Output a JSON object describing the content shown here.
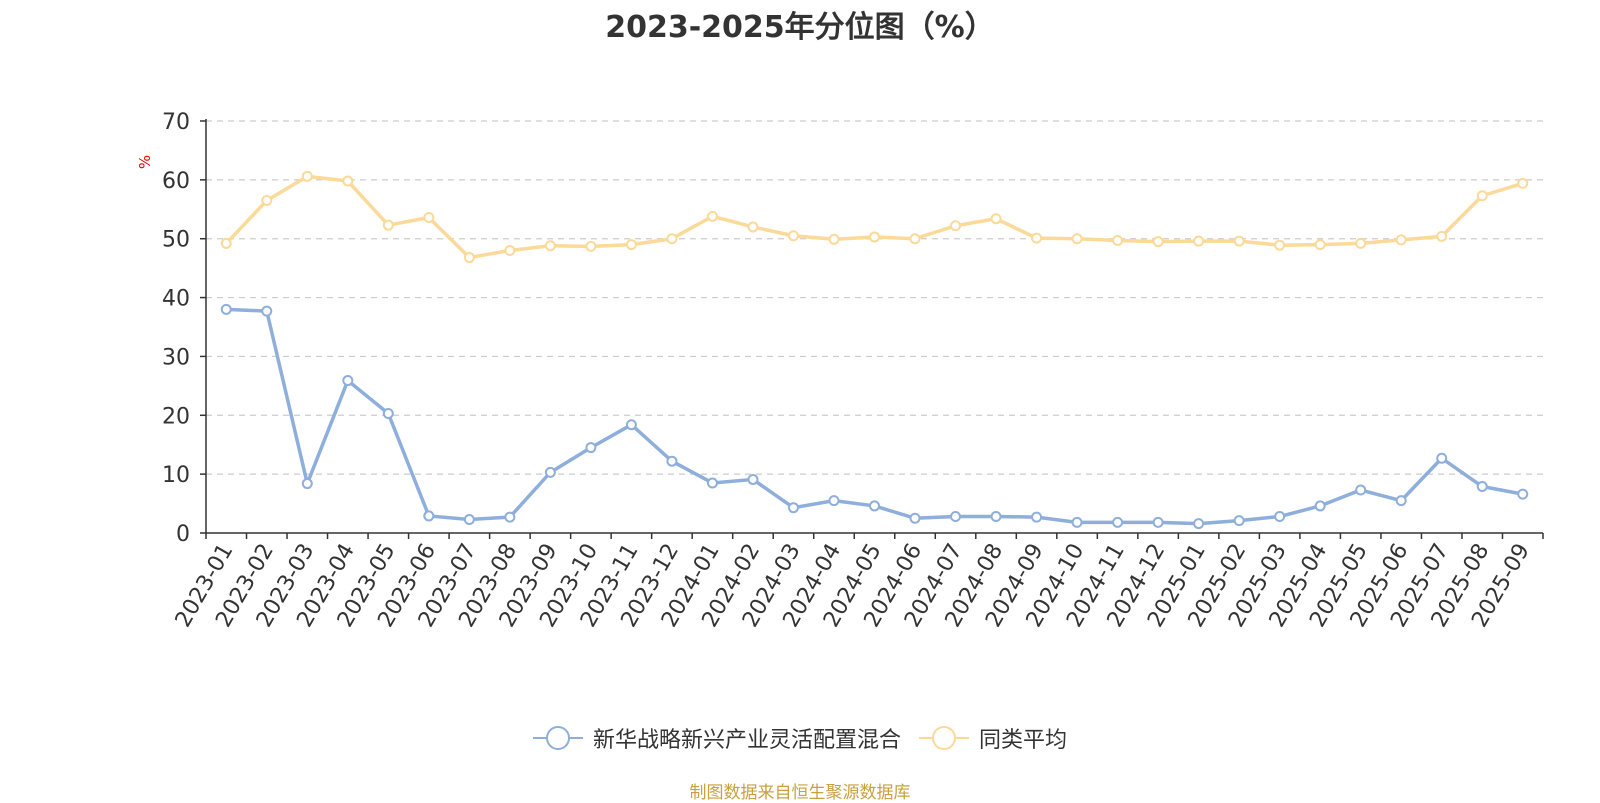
{
  "chart_data": {
    "type": "line",
    "title": "2023-2025年分位图（%）",
    "ylabel": "%",
    "ylim": [
      0,
      70
    ],
    "yticks": [
      0,
      10,
      20,
      30,
      40,
      50,
      60,
      70
    ],
    "grid": true,
    "legend_position": "bottom",
    "categories": [
      "2023-01",
      "2023-02",
      "2023-03",
      "2023-04",
      "2023-05",
      "2023-06",
      "2023-07",
      "2023-08",
      "2023-09",
      "2023-10",
      "2023-11",
      "2023-12",
      "2024-01",
      "2024-02",
      "2024-03",
      "2024-04",
      "2024-05",
      "2024-06",
      "2024-07",
      "2024-08",
      "2024-09",
      "2024-10",
      "2024-11",
      "2024-12",
      "2025-01",
      "2025-02",
      "2025-03",
      "2025-04",
      "2025-05",
      "2025-06",
      "2025-07",
      "2025-08",
      "2025-09"
    ],
    "series": [
      {
        "name": "新华战略新兴产业灵活配置混合",
        "color": "#8eaedb",
        "values": [
          38.0,
          37.7,
          8.4,
          25.9,
          20.3,
          2.9,
          2.3,
          2.7,
          10.3,
          14.5,
          18.4,
          12.2,
          8.5,
          9.1,
          4.3,
          5.5,
          4.6,
          2.5,
          2.8,
          2.8,
          2.7,
          1.8,
          1.8,
          1.8,
          1.6,
          2.1,
          2.8,
          4.6,
          7.3,
          5.5,
          12.7,
          7.9,
          6.6
        ]
      },
      {
        "name": "同类平均",
        "color": "#fbd998",
        "values": [
          49.2,
          56.5,
          60.6,
          59.8,
          52.3,
          53.6,
          46.8,
          48.0,
          48.8,
          48.7,
          49.0,
          50.0,
          53.8,
          52.0,
          50.5,
          49.9,
          50.3,
          50.0,
          52.2,
          53.4,
          50.1,
          50.0,
          49.7,
          49.5,
          49.6,
          49.6,
          48.9,
          49.0,
          49.2,
          49.8,
          50.4,
          57.3,
          59.4
        ]
      }
    ]
  },
  "source": {
    "text": "制图数据来自恒生聚源数据库",
    "color": "#c8a040"
  }
}
